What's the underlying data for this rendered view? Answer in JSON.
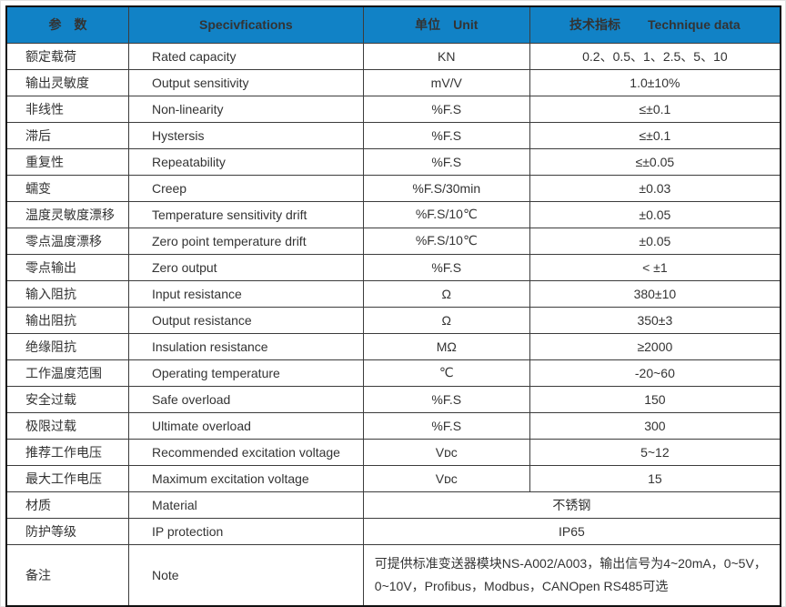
{
  "table": {
    "colors": {
      "header_bg": "#1182c6",
      "header_text": "#ffffff",
      "border_outer": "#111111",
      "border_inner": "#3c3c3c",
      "body_text": "#333333"
    },
    "header": {
      "param": "参　数",
      "spec": "Specivfications",
      "unit_zh": "单位",
      "unit_en": "Unit",
      "tech_zh": "技术指标",
      "tech_en": "Technique data"
    },
    "rows": [
      {
        "param": "额定载荷",
        "spec": "Rated capacity",
        "unit": "KN",
        "value": "0.2、0.5、1、2.5、5、10"
      },
      {
        "param": "输出灵敏度",
        "spec": "Output sensitivity",
        "unit": "mV/V",
        "value": "1.0±10%"
      },
      {
        "param": "非线性",
        "spec": "Non-linearity",
        "unit": "%F.S",
        "value": "≤±0.1"
      },
      {
        "param": "滞后",
        "spec": "Hystersis",
        "unit": "%F.S",
        "value": "≤±0.1"
      },
      {
        "param": "重复性",
        "spec": "Repeatability",
        "unit": "%F.S",
        "value": "≤±0.05"
      },
      {
        "param": "蠕变",
        "spec": "Creep",
        "unit": "%F.S/30min",
        "value": "±0.03"
      },
      {
        "param": "温度灵敏度漂移",
        "spec": "Temperature sensitivity drift",
        "unit": "%F.S/10℃",
        "value": "±0.05"
      },
      {
        "param": "零点温度漂移",
        "spec": "Zero point temperature drift",
        "unit": "%F.S/10℃",
        "value": "±0.05"
      },
      {
        "param": "零点输出",
        "spec": "Zero output",
        "unit": "%F.S",
        "value": "< ±1"
      },
      {
        "param": "输入阻抗",
        "spec": "Input resistance",
        "unit": "Ω",
        "value": "380±10"
      },
      {
        "param": "输出阻抗",
        "spec": "Output resistance",
        "unit": "Ω",
        "value": "350±3"
      },
      {
        "param": "绝缘阻抗",
        "spec": "Insulation resistance",
        "unit": "MΩ",
        "value": "≥2000"
      },
      {
        "param": "工作温度范围",
        "spec": "Operating temperature",
        "unit": "℃",
        "value": "-20~60"
      },
      {
        "param": "安全过载",
        "spec": "Safe overload",
        "unit": "%F.S",
        "value": "150"
      },
      {
        "param": "极限过载",
        "spec": "Ultimate overload",
        "unit": "%F.S",
        "value": "300"
      },
      {
        "param": "推荐工作电压",
        "spec": "Recommended excitation voltage",
        "unit": "Vᴅᴄ",
        "value": "5~12"
      },
      {
        "param": "最大工作电压",
        "spec": "Maximum excitation voltage",
        "unit": "Vᴅᴄ",
        "value": "15"
      },
      {
        "param": "材质",
        "spec": "Material",
        "merged": true,
        "value": "不锈钢"
      },
      {
        "param": "防护等级",
        "spec": "IP protection",
        "merged": true,
        "value": "IP65"
      },
      {
        "param": "备注",
        "spec": "Note",
        "merged": true,
        "align": "left",
        "tall": true,
        "value": "可提供标准变送器模块NS-A002/A003，输出信号为4~20mA，0~5V，0~10V，Profibus，Modbus，CANOpen  RS485可选"
      }
    ]
  }
}
